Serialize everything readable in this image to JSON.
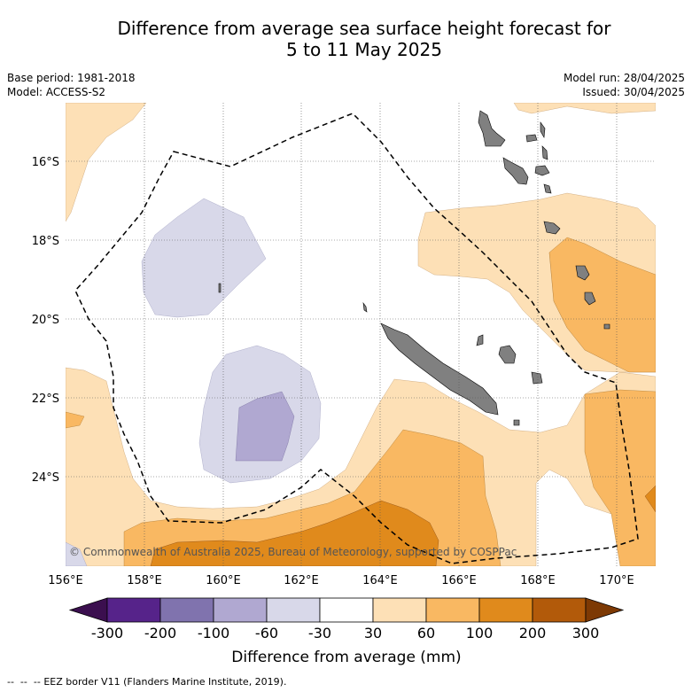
{
  "title": {
    "line1": "Difference from average sea surface height forecast for",
    "line2": "5 to 11 May 2025"
  },
  "meta": {
    "base_period": "Base period: 1981-2018",
    "model": "Model: ACCESS-S2",
    "model_run": "Model run: 28/04/2025",
    "issued": "Issued: 30/04/2025"
  },
  "map": {
    "lon_ticks": [
      "156°E",
      "158°E",
      "160°E",
      "162°E",
      "164°E",
      "166°E",
      "168°E",
      "170°E"
    ],
    "lat_ticks": [
      "16°S",
      "18°S",
      "20°S",
      "22°S",
      "24°S"
    ],
    "copyright": "© Commonwealth of Australia 2025, Bureau of Meteorology, supported by COSPPac",
    "eez_label": "EEZ border V11 (Flanders Marine Institute, 2019).",
    "colors": {
      "neg300": "#3b0f4f",
      "neg200": "#56238a",
      "neg100": "#8073ae",
      "neg60": "#b0a8d1",
      "neg30": "#d8d8e9",
      "neutral": "#ffffff",
      "pos30": "#fde0b6",
      "pos60": "#f9b862",
      "pos100": "#e08a1c",
      "pos200": "#b25a0a",
      "pos300": "#7d3904",
      "land": "#808080"
    }
  },
  "legend": {
    "ticks": [
      "-300",
      "-200",
      "-100",
      "-60",
      "-30",
      "30",
      "60",
      "100",
      "200",
      "300"
    ],
    "label": "Difference from average (mm)"
  }
}
